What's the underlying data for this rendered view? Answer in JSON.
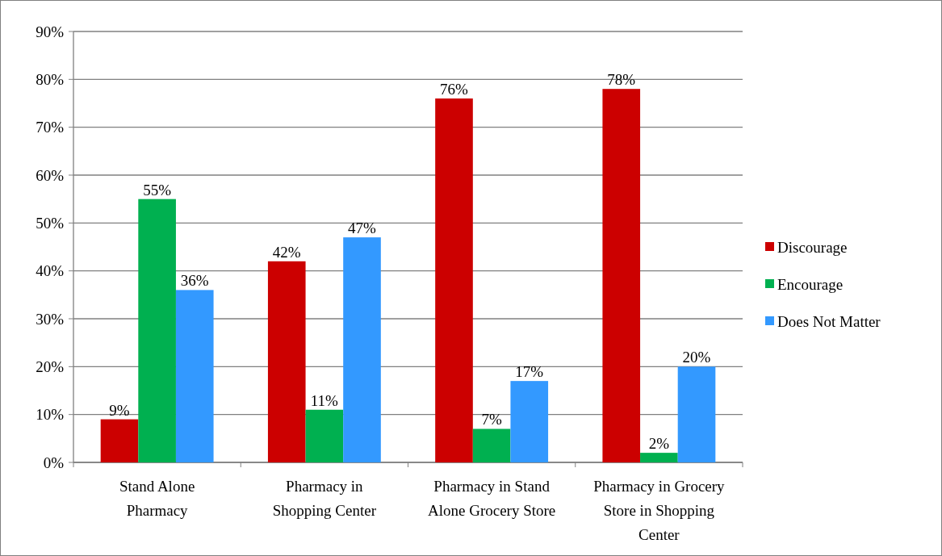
{
  "chart_data": {
    "type": "bar",
    "categories": [
      "Stand Alone Pharmacy",
      "Pharmacy in Shopping Center",
      "Pharmacy in Stand Alone Grocery Store",
      "Pharmacy in Grocery Store in Shopping Center"
    ],
    "series": [
      {
        "name": "Discourage",
        "color": "#cc0000",
        "values": [
          9,
          42,
          76,
          78
        ],
        "value_labels": [
          "9%",
          "42%",
          "76%",
          "78%"
        ]
      },
      {
        "name": "Encourage",
        "color": "#00b050",
        "values": [
          55,
          11,
          7,
          2
        ],
        "value_labels": [
          "55%",
          "11%",
          "7%",
          "2%"
        ]
      },
      {
        "name": "Does Not Matter",
        "color": "#3399ff",
        "values": [
          36,
          47,
          17,
          20
        ],
        "value_labels": [
          "36%",
          "47%",
          "17%",
          "20%"
        ]
      }
    ],
    "ylim": [
      0,
      90
    ],
    "yticks": [
      {
        "value": 0,
        "label": "0%"
      },
      {
        "value": 10,
        "label": "10%"
      },
      {
        "value": 20,
        "label": "20%"
      },
      {
        "value": 30,
        "label": "30%"
      },
      {
        "value": 40,
        "label": "40%"
      },
      {
        "value": 50,
        "label": "50%"
      },
      {
        "value": 60,
        "label": "60%"
      },
      {
        "value": 70,
        "label": "70%"
      },
      {
        "value": 80,
        "label": "80%"
      },
      {
        "value": 90,
        "label": "90%"
      }
    ],
    "grid": "y",
    "legend": "right"
  }
}
